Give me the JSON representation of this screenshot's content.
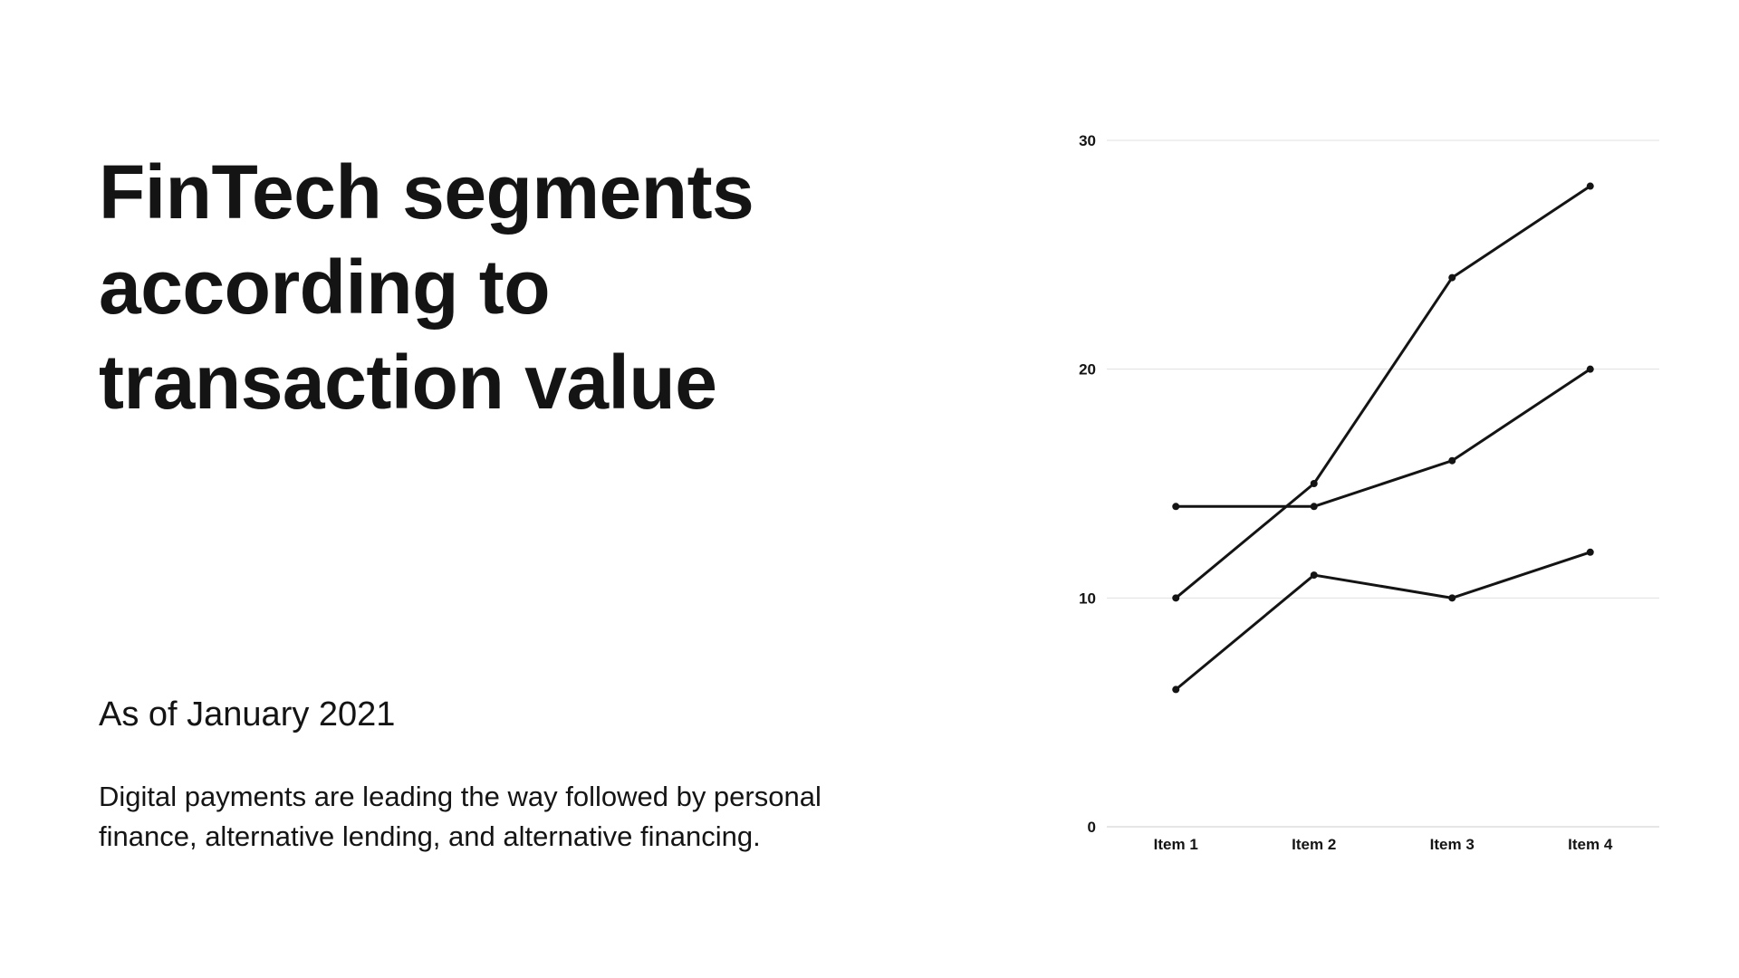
{
  "slide": {
    "title": "FinTech segments according to transaction value",
    "subtitle": "As of January 2021",
    "body": "Digital payments are leading the way followed by personal finance, alternative lending, and alternative financing."
  },
  "chart_data": {
    "type": "line",
    "categories": [
      "Item 1",
      "Item 2",
      "Item 3",
      "Item 4"
    ],
    "series": [
      {
        "values": [
          10,
          15,
          24,
          28
        ]
      },
      {
        "values": [
          14,
          14,
          16,
          20
        ]
      },
      {
        "values": [
          6,
          11,
          10,
          12
        ]
      }
    ],
    "title": "",
    "xlabel": "",
    "ylabel": "",
    "ylim": [
      0,
      30
    ],
    "yticks": [
      0,
      10,
      20,
      30
    ],
    "grid": true,
    "legend": "none",
    "colors": {
      "line": "#141414",
      "grid": "#e0e0e0",
      "axis": "#cccccc"
    }
  }
}
